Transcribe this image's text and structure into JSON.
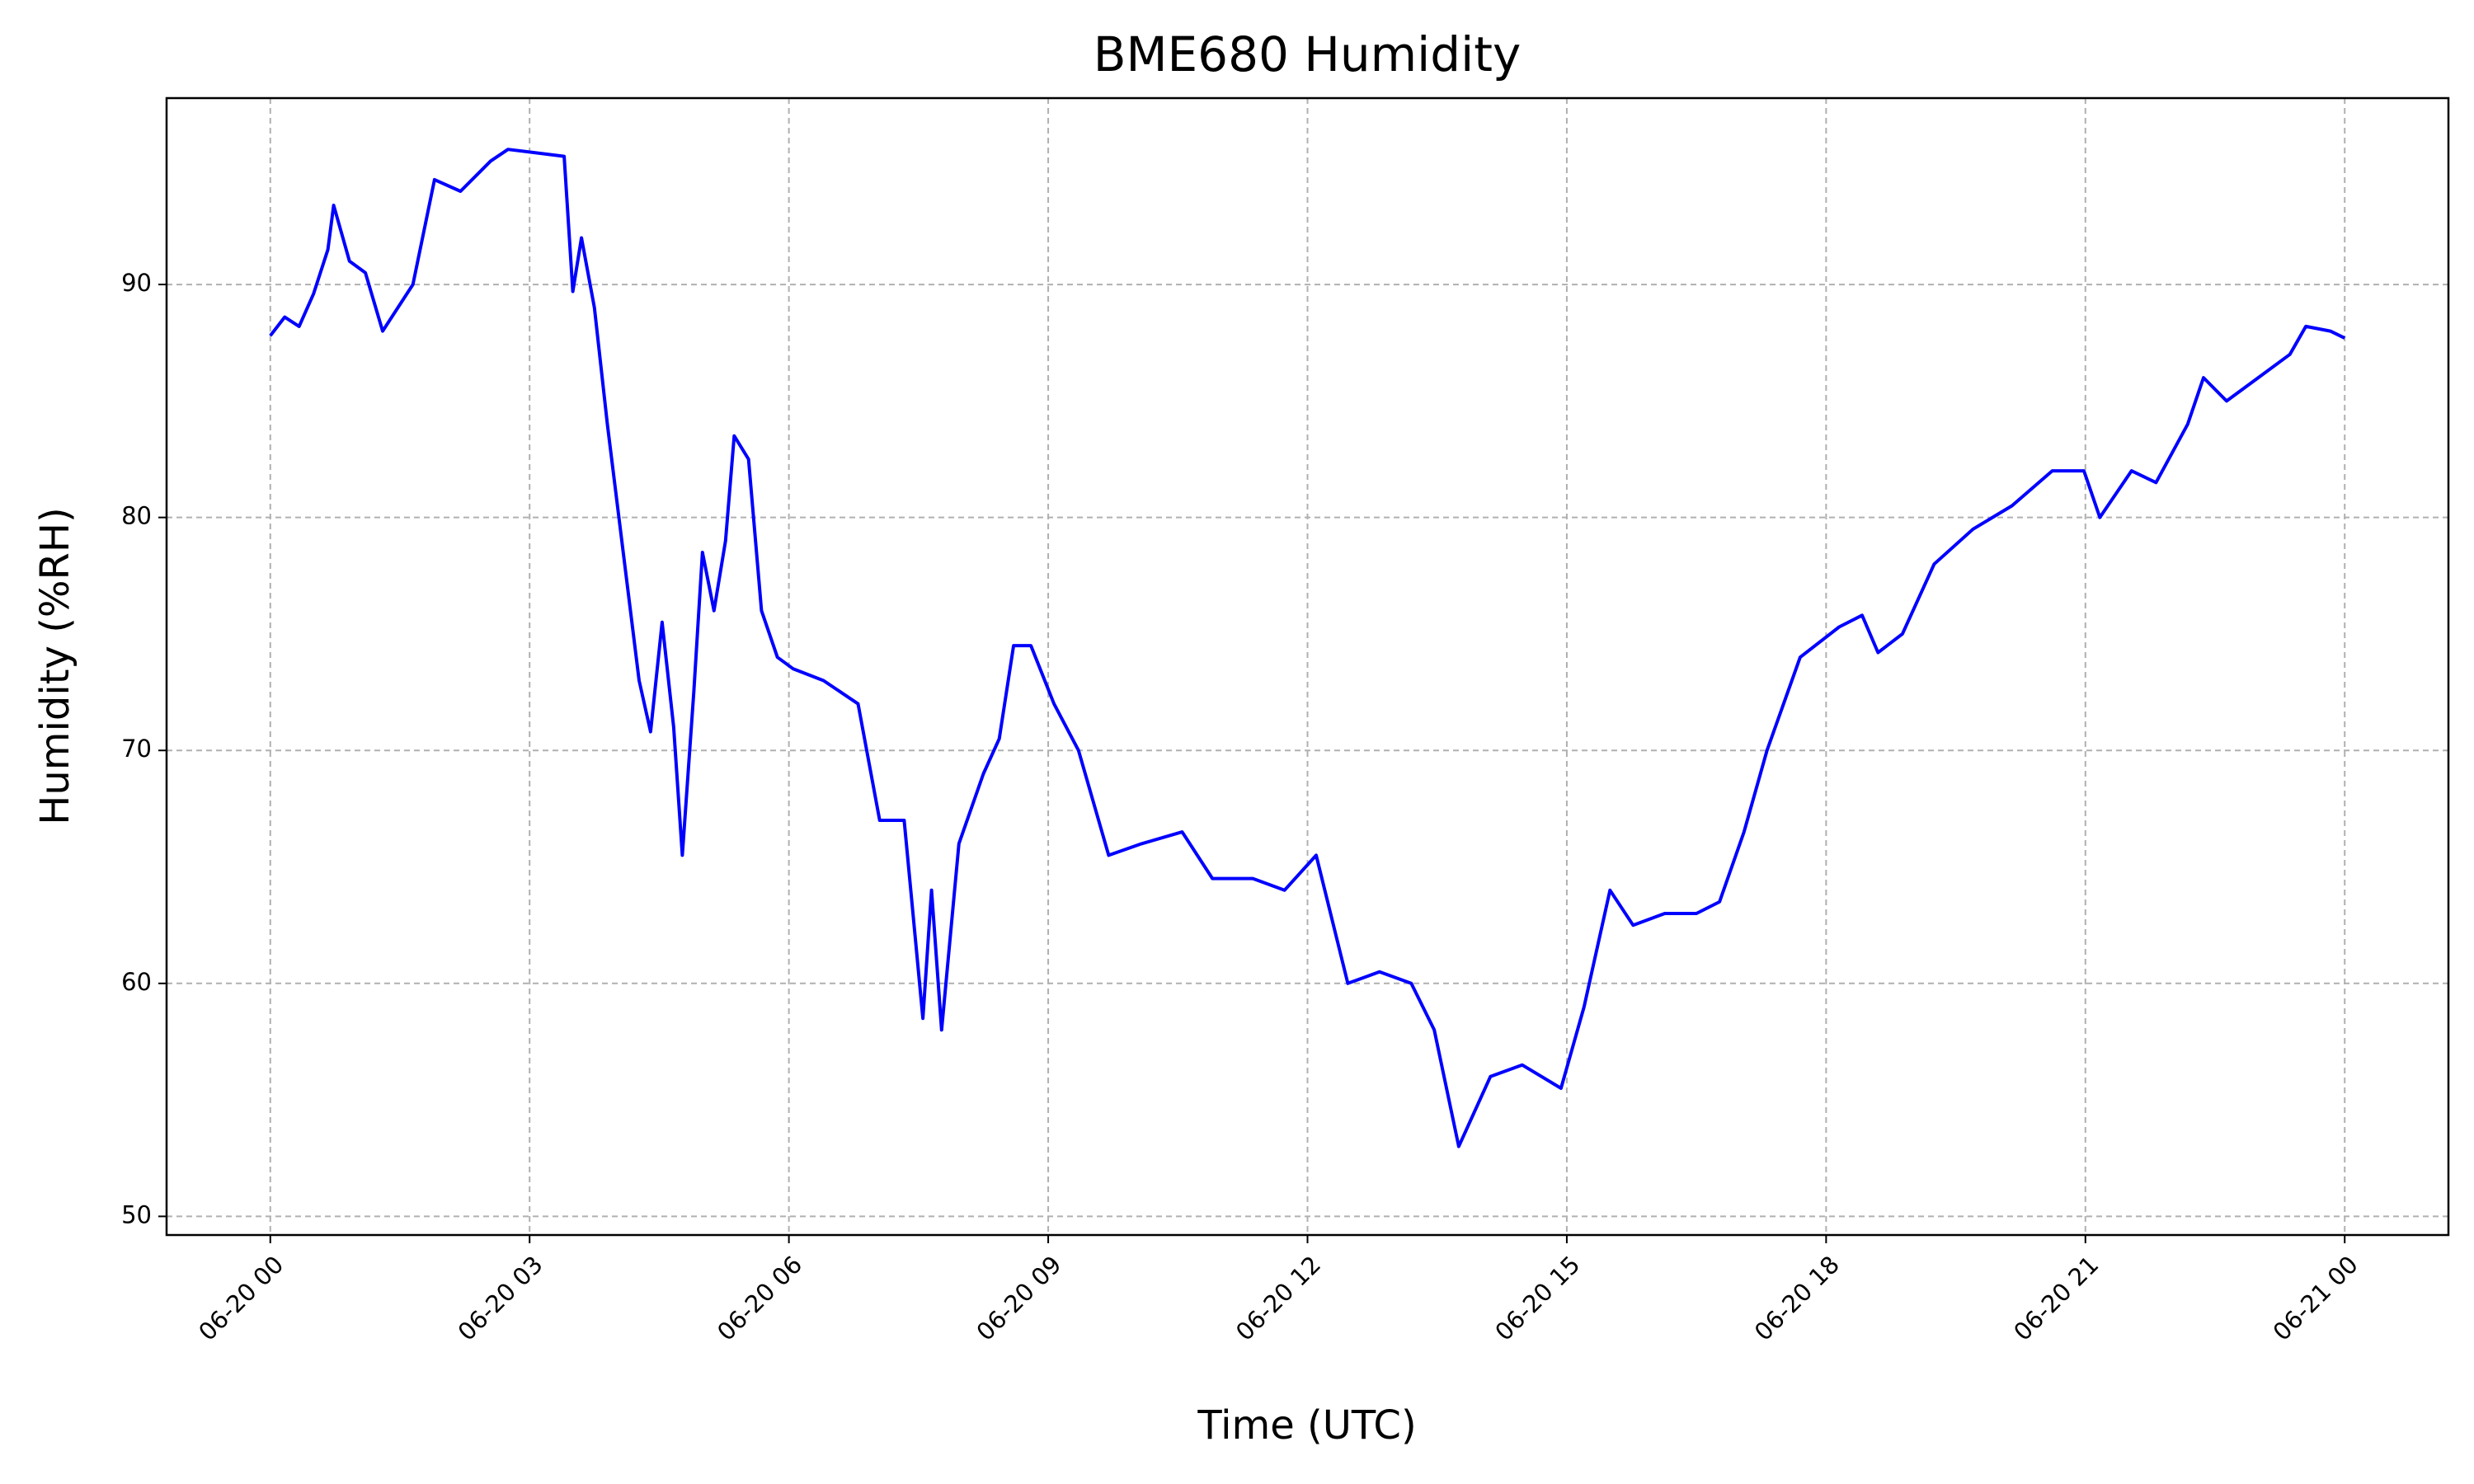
{
  "chart_data": {
    "type": "line",
    "title": "BME680 Humidity",
    "x_label": "Time (UTC)",
    "y_label": "Humidity (%RH)",
    "color": "#0000ff",
    "grid": true,
    "x": [
      "06-20 00:00",
      "06-20 00:10",
      "06-20 00:20",
      "06-20 00:30",
      "06-20 00:40",
      "06-20 00:44",
      "06-20 00:55",
      "06-20 01:06",
      "06-20 01:18",
      "06-20 01:39",
      "06-20 01:54",
      "06-20 02:12",
      "06-20 02:33",
      "06-20 02:45",
      "06-20 03:24",
      "06-20 03:30",
      "06-20 03:36",
      "06-20 03:45",
      "06-20 03:54",
      "06-20 04:06",
      "06-20 04:16",
      "06-20 04:24",
      "06-20 04:32",
      "06-20 04:40",
      "06-20 04:46",
      "06-20 04:54",
      "06-20 05:00",
      "06-20 05:08",
      "06-20 05:16",
      "06-20 05:22",
      "06-20 05:32",
      "06-20 05:41",
      "06-20 05:52",
      "06-20 06:03",
      "06-20 06:24",
      "06-20 06:48",
      "06-20 07:03",
      "06-20 07:20",
      "06-20 07:33",
      "06-20 07:39",
      "06-20 07:46",
      "06-20 07:58",
      "06-20 08:15",
      "06-20 08:26",
      "06-20 08:36",
      "06-20 08:48",
      "06-20 09:04",
      "06-20 09:21",
      "06-20 09:42",
      "06-20 10:05",
      "06-20 10:33",
      "06-20 10:54",
      "06-20 11:22",
      "06-20 11:44",
      "06-20 12:06",
      "06-20 12:28",
      "06-20 12:50",
      "06-20 13:12",
      "06-20 13:28",
      "06-20 13:45",
      "06-20 14:07",
      "06-20 14:29",
      "06-20 14:56",
      "06-20 15:12",
      "06-20 15:30",
      "06-20 15:46",
      "06-20 16:08",
      "06-20 16:30",
      "06-20 16:46",
      "06-20 17:03",
      "06-20 17:19",
      "06-20 17:42",
      "06-20 18:09",
      "06-20 18:25",
      "06-20 18:36",
      "06-20 18:53",
      "06-20 19:15",
      "06-20 19:42",
      "06-20 20:09",
      "06-20 20:37",
      "06-20 20:59",
      "06-20 21:10",
      "06-20 21:32",
      "06-20 21:49",
      "06-20 22:11",
      "06-20 22:22",
      "06-20 22:38",
      "06-20 23:00",
      "06-20 23:22",
      "06-20 23:33",
      "06-20 23:50",
      "06-21 00:00"
    ],
    "values": [
      87.8,
      88.6,
      88.2,
      89.6,
      91.5,
      93.4,
      91,
      90.5,
      88,
      90,
      94.5,
      94,
      95.3,
      95.8,
      95.5,
      89.7,
      92,
      89,
      84,
      78,
      73,
      70.8,
      75.5,
      71,
      65.5,
      72.5,
      78.5,
      76,
      79,
      83.5,
      82.5,
      76,
      74,
      73.5,
      73,
      72,
      67,
      67,
      58.5,
      64,
      58,
      66,
      69,
      70.5,
      74.5,
      74.5,
      72,
      70,
      65.5,
      66,
      66.5,
      64.5,
      64.5,
      64,
      65.5,
      60,
      60.5,
      60,
      58,
      53,
      56,
      56.5,
      55.5,
      59,
      64,
      62.5,
      63,
      63,
      63.5,
      66.5,
      70,
      74,
      75.3,
      75.8,
      74.2,
      75,
      78,
      79.5,
      80.5,
      82,
      82,
      80,
      82,
      81.5,
      84,
      86,
      85,
      86,
      87,
      88.2,
      88,
      87.7
    ],
    "xlim": [
      "06-19 22:48",
      "06-21 01:12"
    ],
    "xticks": [
      "06-20 00",
      "06-20 03",
      "06-20 06",
      "06-20 09",
      "06-20 12",
      "06-20 15",
      "06-20 18",
      "06-20 21",
      "06-21 00"
    ],
    "ylim": [
      49.2,
      98.0
    ],
    "yticks": [
      50,
      60,
      70,
      80,
      90
    ]
  }
}
